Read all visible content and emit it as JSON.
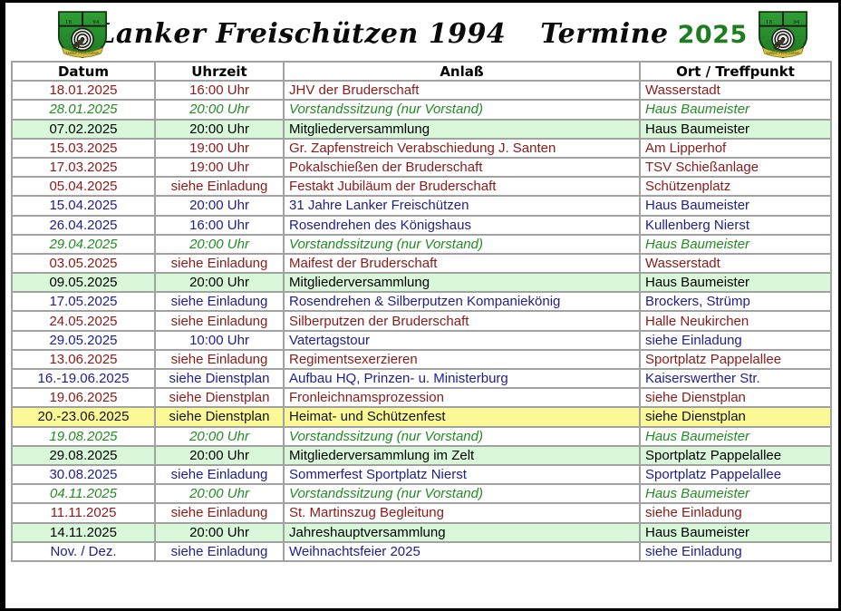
{
  "header": {
    "title_club": "Lanker Freischützen 1994",
    "title_termine": "Termine",
    "title_year": "2025"
  },
  "crest": {
    "year_left": "18",
    "year_right": "94",
    "banner_text": "Lanker Freischützen"
  },
  "colors": {
    "title_year_green": "#1e7d1e",
    "text_dark_red": "#8b1a1a",
    "text_navy": "#20208f",
    "text_green": "#228b22",
    "row_green_bg": "#d9f8d9",
    "row_yellow_bg": "#fbf896",
    "crest_green": "#2f9e35",
    "table_border_gray": "#a2a2a2"
  },
  "table": {
    "columns": [
      "Datum",
      "Uhrzeit",
      "Anlaß",
      "Ort / Treffpunkt"
    ],
    "rows": [
      {
        "datum": "18.01.2025",
        "uhrzeit": "16:00 Uhr",
        "anlass": "JHV der Bruderschaft",
        "ort": "Wasserstadt",
        "style": "red"
      },
      {
        "datum": "28.01.2025",
        "uhrzeit": "20:00 Uhr",
        "anlass": "Vorstandssitzung (nur Vorstand)",
        "ort": "Haus Baumeister",
        "style": "green"
      },
      {
        "datum": "07.02.2025",
        "uhrzeit": "20:00 Uhr",
        "anlass": "Mitgliederversammlung",
        "ort": "Haus Baumeister",
        "style": "greenbg"
      },
      {
        "datum": "15.03.2025",
        "uhrzeit": "19:00 Uhr",
        "anlass": "Gr. Zapfenstreich Verabschiedung J. Santen",
        "ort": "Am Lipperhof",
        "style": "red"
      },
      {
        "datum": "17.03.2025",
        "uhrzeit": "19:00 Uhr",
        "anlass": "Pokalschießen der Bruderschaft",
        "ort": "TSV Schießanlage",
        "style": "red"
      },
      {
        "datum": "05.04.2025",
        "uhrzeit": "siehe Einladung",
        "anlass": "Festakt Jubiläum der Bruderschaft",
        "ort": "Schützenplatz",
        "style": "red"
      },
      {
        "datum": "15.04.2025",
        "uhrzeit": "20:00 Uhr",
        "anlass": "31 Jahre Lanker Freischützen",
        "ort": "Haus Baumeister",
        "style": "blue"
      },
      {
        "datum": "26.04.2025",
        "uhrzeit": "16:00 Uhr",
        "anlass": "Rosendrehen des Königshaus",
        "ort": "Kullenberg Nierst",
        "style": "blue"
      },
      {
        "datum": "29.04.2025",
        "uhrzeit": "20:00 Uhr",
        "anlass": "Vorstandssitzung (nur Vorstand)",
        "ort": "Haus Baumeister",
        "style": "green"
      },
      {
        "datum": "03.05.2025",
        "uhrzeit": "siehe Einladung",
        "anlass": "Maifest der Bruderschaft",
        "ort": "Wasserstadt",
        "style": "red"
      },
      {
        "datum": "09.05.2025",
        "uhrzeit": "20:00 Uhr",
        "anlass": "Mitgliederversammlung",
        "ort": "Haus Baumeister",
        "style": "greenbg"
      },
      {
        "datum": "17.05.2025",
        "uhrzeit": "siehe Einladung",
        "anlass": "Rosendrehen & Silberputzen Kompaniekönig",
        "ort": "Brockers, Strümp",
        "style": "blue"
      },
      {
        "datum": "24.05.2025",
        "uhrzeit": "siehe Einladung",
        "anlass": "Silberputzen der Bruderschaft",
        "ort": "Halle Neukirchen",
        "style": "red"
      },
      {
        "datum": "29.05.2025",
        "uhrzeit": "10:00 Uhr",
        "anlass": "Vatertagstour",
        "ort": "siehe Einladung",
        "style": "blue"
      },
      {
        "datum": "13.06.2025",
        "uhrzeit": "siehe Einladung",
        "anlass": "Regimentsexerzieren",
        "ort": "Sportplatz Pappelallee",
        "style": "red"
      },
      {
        "datum": "16.-19.06.2025",
        "uhrzeit": "siehe Dienstplan",
        "anlass": "Aufbau HQ, Prinzen- u. Ministerburg",
        "ort": "Kaiserswerther Str.",
        "style": "blue"
      },
      {
        "datum": "19.06.2025",
        "uhrzeit": "siehe Dienstplan",
        "anlass": "Fronleichnamsprozession",
        "ort": "siehe Dienstplan",
        "style": "red"
      },
      {
        "datum": "20.-23.06.2025",
        "uhrzeit": "siehe Dienstplan",
        "anlass": "Heimat- und Schützenfest",
        "ort": "siehe Dienstplan",
        "style": "yellowbg"
      },
      {
        "datum": "19.08.2025",
        "uhrzeit": "20:00 Uhr",
        "anlass": "Vorstandssitzung (nur Vorstand)",
        "ort": "Haus Baumeister",
        "style": "green"
      },
      {
        "datum": "29.08.2025",
        "uhrzeit": "20:00 Uhr",
        "anlass": "Mitgliederversammlung im Zelt",
        "ort": "Sportplatz Pappelallee",
        "style": "greenbg"
      },
      {
        "datum": "30.08.2025",
        "uhrzeit": "siehe Einladung",
        "anlass": "Sommerfest Sportplatz Nierst",
        "ort": "Sportplatz Pappelallee",
        "style": "blue"
      },
      {
        "datum": "04.11.2025",
        "uhrzeit": "20:00 Uhr",
        "anlass": "Vorstandssitzung (nur Vorstand)",
        "ort": "Haus Baumeister",
        "style": "green"
      },
      {
        "datum": "11.11.2025",
        "uhrzeit": "siehe Einladung",
        "anlass": "St. Martinszug Begleitung",
        "ort": "siehe Einladung",
        "style": "red"
      },
      {
        "datum": "14.11.2025",
        "uhrzeit": "20:00 Uhr",
        "anlass": "Jahreshauptversammlung",
        "ort": "Haus Baumeister",
        "style": "greenbg"
      },
      {
        "datum": "Nov. / Dez.",
        "uhrzeit": "siehe Einladung",
        "anlass": "Weihnachtsfeier 2025",
        "ort": "siehe Einladung",
        "style": "blue"
      }
    ]
  }
}
